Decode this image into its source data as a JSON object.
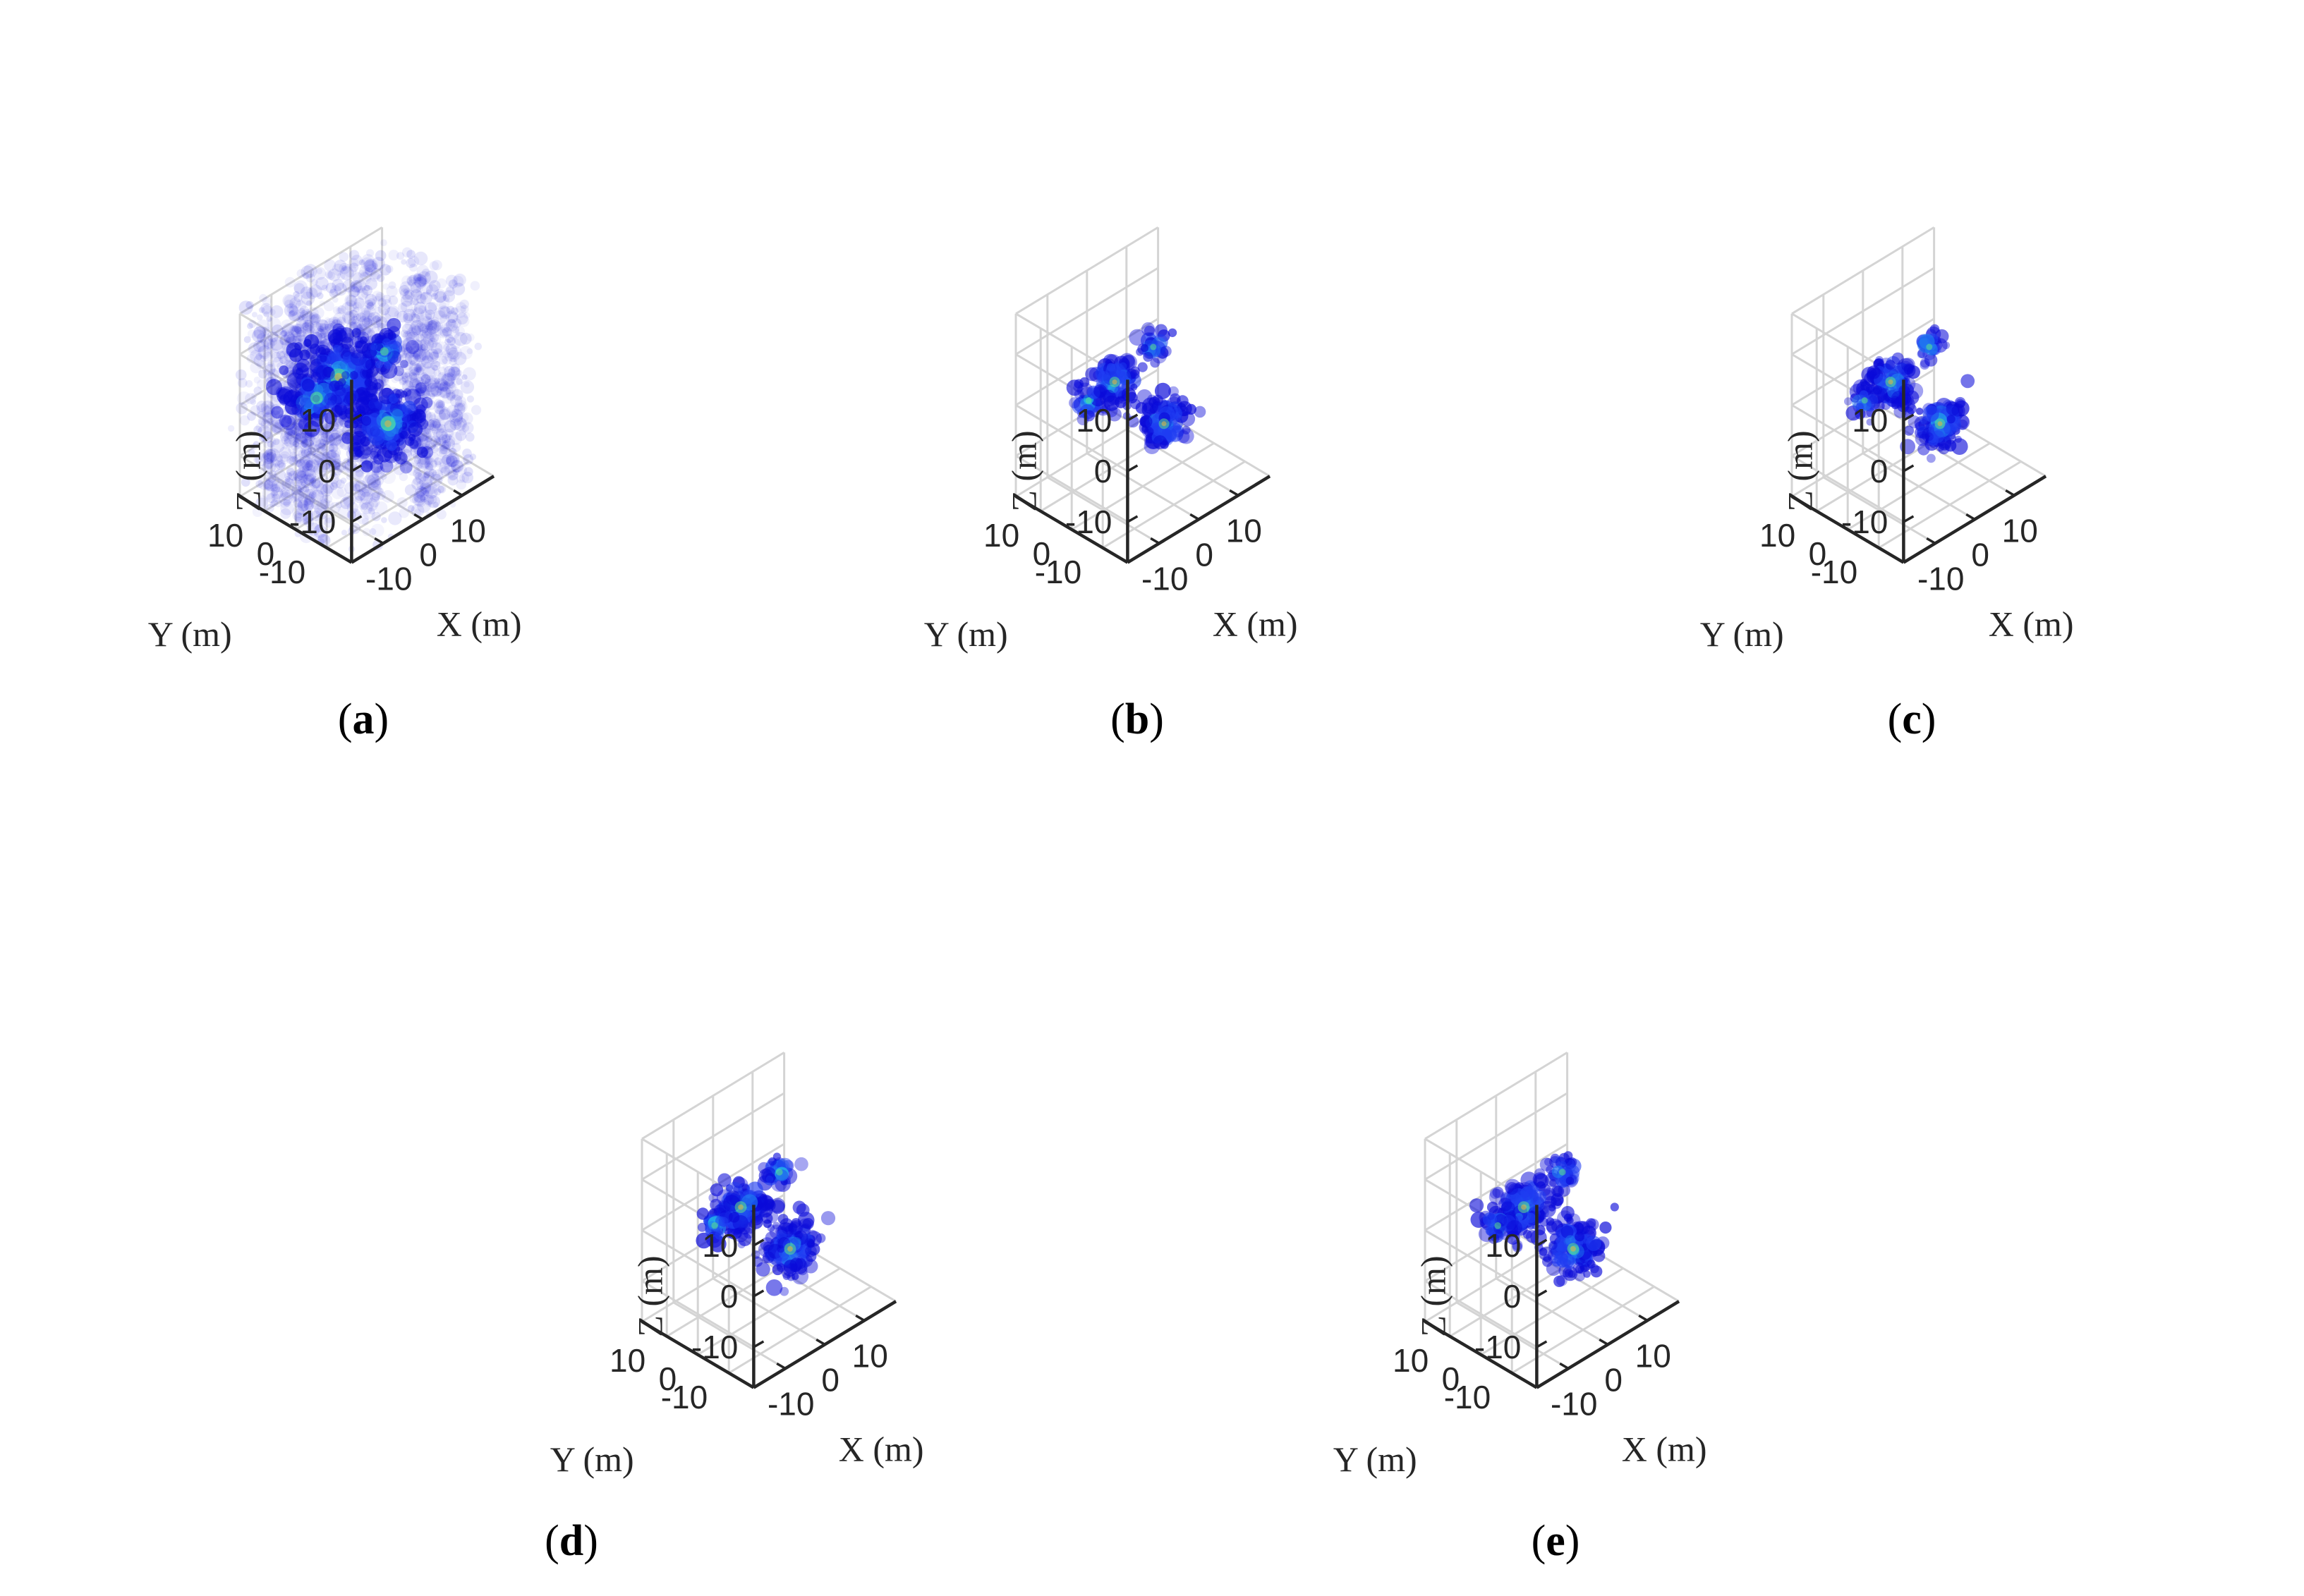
{
  "figure": {
    "colors": {
      "background": "#ffffff",
      "axis": "#262626",
      "grid": "#d4d4d4",
      "colormap": [
        "#0a0ad9",
        "#1f3df2",
        "#1f7ef0",
        "#22c4e6",
        "#5ce08c",
        "#d8b44a"
      ]
    }
  },
  "chart_data": [
    {
      "id": "a",
      "type": "scatter",
      "caption_letter": "a",
      "description_kind": "3d-volumetric-point-cloud",
      "xlabel": "X (m)",
      "ylabel": "Y (m)",
      "zlabel": "Z (m)",
      "x_ticks": [
        "-10",
        "0",
        "10"
      ],
      "y_ticks": [
        "10",
        "0",
        "-10"
      ],
      "z_ticks": [
        "10",
        "0",
        "-10"
      ],
      "xlim": [
        -18,
        18
      ],
      "ylim": [
        -18,
        18
      ],
      "zlim": [
        -18,
        18
      ],
      "grid": true,
      "noise_level": "high",
      "clusters": [
        {
          "x": -4,
          "y": 4,
          "z": 4,
          "spread": 4,
          "n": 220
        },
        {
          "x": 3,
          "y": -3,
          "z": -6,
          "spread": 3.5,
          "n": 200
        },
        {
          "x": -8,
          "y": 6,
          "z": 1,
          "spread": 3,
          "n": 90
        },
        {
          "x": 6,
          "y": 2,
          "z": 5,
          "spread": 2,
          "n": 60
        }
      ]
    },
    {
      "id": "b",
      "type": "scatter",
      "caption_letter": "b",
      "description_kind": "3d-volumetric-point-cloud",
      "xlabel": "X (m)",
      "ylabel": "Y (m)",
      "zlabel": "Z (m)",
      "x_ticks": [
        "-10",
        "0",
        "10"
      ],
      "y_ticks": [
        "10",
        "0",
        "-10"
      ],
      "z_ticks": [
        "10",
        "0",
        "-10"
      ],
      "xlim": [
        -18,
        18
      ],
      "ylim": [
        -18,
        18
      ],
      "zlim": [
        -18,
        18
      ],
      "grid": true,
      "noise_level": "none",
      "clusters": [
        {
          "x": -4,
          "y": 4,
          "z": 3,
          "spread": 2.5,
          "n": 110
        },
        {
          "x": 3,
          "y": -3,
          "z": -6,
          "spread": 2.5,
          "n": 120
        },
        {
          "x": -9,
          "y": 6,
          "z": 1,
          "spread": 1.5,
          "n": 30
        },
        {
          "x": 5,
          "y": 3,
          "z": 6,
          "spread": 1.5,
          "n": 30
        }
      ]
    },
    {
      "id": "c",
      "type": "scatter",
      "caption_letter": "c",
      "description_kind": "3d-volumetric-point-cloud",
      "xlabel": "X (m)",
      "ylabel": "Y (m)",
      "zlabel": "Z (m)",
      "x_ticks": [
        "-10",
        "0",
        "10"
      ],
      "y_ticks": [
        "10",
        "0",
        "-10"
      ],
      "z_ticks": [
        "10",
        "0",
        "-10"
      ],
      "xlim": [
        -18,
        18
      ],
      "ylim": [
        -18,
        18
      ],
      "zlim": [
        -18,
        18
      ],
      "grid": true,
      "noise_level": "none",
      "clusters": [
        {
          "x": -4,
          "y": 4,
          "z": 3,
          "spread": 2.5,
          "n": 110
        },
        {
          "x": 3,
          "y": -3,
          "z": -6,
          "spread": 2.5,
          "n": 120
        },
        {
          "x": -9,
          "y": 6,
          "z": 1,
          "spread": 1.5,
          "n": 30
        },
        {
          "x": 5,
          "y": 3,
          "z": 6,
          "spread": 1.5,
          "n": 30
        }
      ]
    },
    {
      "id": "d",
      "type": "scatter",
      "caption_letter": "d",
      "description_kind": "3d-volumetric-point-cloud",
      "xlabel": "X (m)",
      "ylabel": "Y (m)",
      "zlabel": "Z (m)",
      "x_ticks": [
        "-10",
        "0",
        "10"
      ],
      "y_ticks": [
        "10",
        "0",
        "-10"
      ],
      "z_ticks": [
        "10",
        "0",
        "-10"
      ],
      "xlim": [
        -18,
        18
      ],
      "ylim": [
        -18,
        18
      ],
      "zlim": [
        -18,
        18
      ],
      "grid": true,
      "noise_level": "none",
      "clusters": [
        {
          "x": -4,
          "y": 4,
          "z": 3,
          "spread": 2.8,
          "n": 150
        },
        {
          "x": 3,
          "y": -3,
          "z": -6,
          "spread": 2.8,
          "n": 150
        },
        {
          "x": -9,
          "y": 6,
          "z": 1,
          "spread": 1.6,
          "n": 35
        },
        {
          "x": 5,
          "y": 3,
          "z": 6,
          "spread": 1.6,
          "n": 35
        }
      ]
    },
    {
      "id": "e",
      "type": "scatter",
      "caption_letter": "e",
      "description_kind": "3d-volumetric-point-cloud",
      "xlabel": "X (m)",
      "ylabel": "Y (m)",
      "zlabel": "Z (m)",
      "x_ticks": [
        "-10",
        "0",
        "10"
      ],
      "y_ticks": [
        "10",
        "0",
        "-10"
      ],
      "z_ticks": [
        "10",
        "0",
        "-10"
      ],
      "xlim": [
        -18,
        18
      ],
      "ylim": [
        -18,
        18
      ],
      "zlim": [
        -18,
        18
      ],
      "grid": true,
      "noise_level": "none",
      "clusters": [
        {
          "x": -4,
          "y": 4,
          "z": 3,
          "spread": 2.8,
          "n": 150
        },
        {
          "x": 3,
          "y": -3,
          "z": -6,
          "spread": 2.8,
          "n": 150
        },
        {
          "x": -9,
          "y": 6,
          "z": 1,
          "spread": 1.6,
          "n": 35
        },
        {
          "x": 5,
          "y": 3,
          "z": 6,
          "spread": 1.6,
          "n": 35
        }
      ]
    }
  ]
}
